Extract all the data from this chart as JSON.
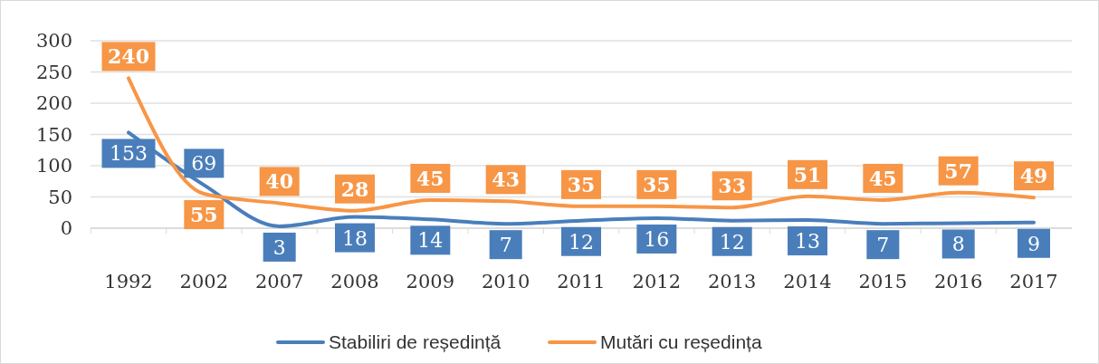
{
  "chart_data": {
    "type": "line",
    "categories": [
      "1992",
      "2002",
      "2007",
      "2008",
      "2009",
      "2010",
      "2011",
      "2012",
      "2013",
      "2014",
      "2015",
      "2016",
      "2017"
    ],
    "series": [
      {
        "name": "Stabiliri de reședință",
        "color": "#4a7ebb",
        "values": [
          153,
          69,
          3,
          18,
          14,
          7,
          12,
          16,
          12,
          13,
          7,
          8,
          9
        ]
      },
      {
        "name": "Mutări cu reședința",
        "color": "#f79646",
        "values": [
          240,
          55,
          40,
          28,
          45,
          43,
          35,
          35,
          33,
          51,
          45,
          57,
          49
        ]
      }
    ],
    "ylim": [
      0,
      300
    ],
    "yticks": [
      0,
      50,
      100,
      150,
      200,
      250,
      300
    ],
    "grid": "y",
    "legend": "bottom",
    "data_labels": true,
    "line_style": "solid"
  }
}
